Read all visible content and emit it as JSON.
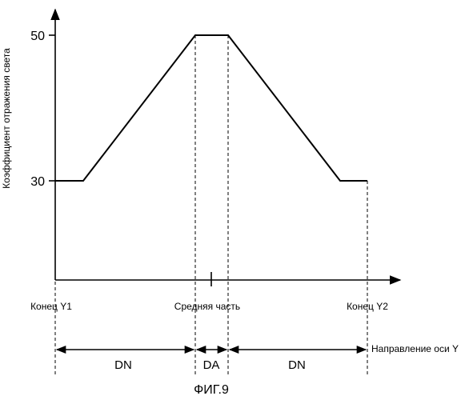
{
  "chart_data": {
    "type": "line",
    "ylabel": "Коэффициент отражения света",
    "yticks": [
      "50",
      "30"
    ],
    "ylim": [
      30,
      50
    ],
    "x": [
      "Конец Y1",
      "",
      "",
      "Средняя часть",
      "",
      "",
      "Конец Y2"
    ],
    "values": [
      30,
      30,
      50,
      50,
      50,
      30,
      30
    ],
    "x_positions": [
      "Конец Y1",
      "Средняя часть",
      "Конец Y2"
    ],
    "x_direction_label": "Направление оси Y",
    "segments": [
      "DN",
      "DA",
      "DN"
    ],
    "figure_label": "ФИГ.9",
    "grid": false
  }
}
